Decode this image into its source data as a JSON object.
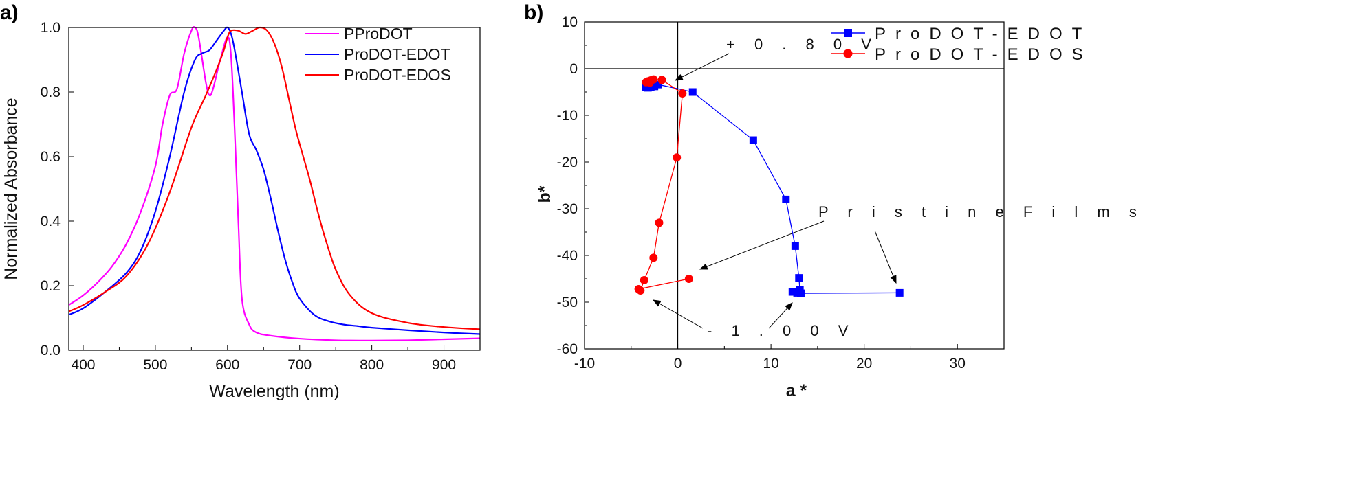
{
  "chart_data": [
    {
      "type": "line",
      "panel_label": "a)",
      "xlabel": "Wavelength (nm)",
      "ylabel": "Normalized Absorbance",
      "xlim": [
        380,
        950
      ],
      "ylim": [
        0.0,
        1.0
      ],
      "x_ticks": [
        400,
        500,
        600,
        700,
        800,
        900
      ],
      "y_ticks": [
        "0.0",
        "0.2",
        "0.4",
        "0.6",
        "0.8",
        "1.0"
      ],
      "legend_position": "top-right",
      "grid": false,
      "series": [
        {
          "name": "PProDOT",
          "color": "#ff00ff",
          "x": [
            380,
            400,
            420,
            440,
            460,
            480,
            500,
            510,
            520,
            530,
            540,
            550,
            555,
            560,
            570,
            575,
            580,
            590,
            600,
            605,
            610,
            615,
            620,
            630,
            640,
            660,
            700,
            750,
            800,
            850,
            900,
            950
          ],
          "y": [
            0.14,
            0.17,
            0.21,
            0.26,
            0.33,
            0.43,
            0.57,
            0.7,
            0.79,
            0.81,
            0.92,
            0.99,
            1.0,
            0.97,
            0.83,
            0.79,
            0.81,
            0.9,
            0.97,
            0.91,
            0.68,
            0.4,
            0.16,
            0.08,
            0.055,
            0.045,
            0.036,
            0.031,
            0.03,
            0.031,
            0.034,
            0.037
          ]
        },
        {
          "name": "ProDOT-EDOT",
          "color": "#0000ff",
          "x": [
            380,
            400,
            430,
            460,
            480,
            500,
            520,
            540,
            555,
            565,
            575,
            585,
            595,
            600,
            605,
            610,
            620,
            630,
            640,
            650,
            660,
            670,
            680,
            690,
            700,
            720,
            740,
            760,
            780,
            800,
            850,
            900,
            950
          ],
          "y": [
            0.11,
            0.13,
            0.18,
            0.24,
            0.31,
            0.43,
            0.6,
            0.8,
            0.9,
            0.92,
            0.93,
            0.96,
            0.99,
            1.0,
            0.98,
            0.93,
            0.8,
            0.67,
            0.62,
            0.56,
            0.47,
            0.37,
            0.28,
            0.21,
            0.16,
            0.11,
            0.09,
            0.08,
            0.075,
            0.07,
            0.062,
            0.055,
            0.05
          ]
        },
        {
          "name": "ProDOT-EDOS",
          "color": "#ff0000",
          "x": [
            380,
            400,
            430,
            460,
            490,
            520,
            550,
            570,
            585,
            595,
            600,
            605,
            615,
            625,
            635,
            645,
            655,
            665,
            675,
            685,
            695,
            705,
            715,
            725,
            735,
            750,
            770,
            800,
            850,
            900,
            950
          ],
          "y": [
            0.12,
            0.14,
            0.18,
            0.23,
            0.33,
            0.49,
            0.69,
            0.79,
            0.87,
            0.93,
            0.97,
            0.99,
            0.99,
            0.98,
            0.99,
            1.0,
            0.99,
            0.95,
            0.88,
            0.78,
            0.68,
            0.6,
            0.52,
            0.43,
            0.35,
            0.25,
            0.17,
            0.115,
            0.085,
            0.072,
            0.065
          ]
        }
      ]
    },
    {
      "type": "scatter",
      "panel_label": "b)",
      "xlabel": "a *",
      "ylabel": "b*",
      "xlim": [
        -10,
        35
      ],
      "ylim": [
        -60,
        10
      ],
      "x_ticks": [
        "-10",
        "0",
        "10",
        "20",
        "30"
      ],
      "y_ticks": [
        "10",
        "0",
        "-10",
        "-20",
        "-30",
        "-40",
        "-50",
        "-60"
      ],
      "legend_position": "top-right",
      "grid": false,
      "series": [
        {
          "name": "ProDOT-EDOT",
          "color": "#0000ff",
          "marker": "square",
          "points": [
            [
              23.8,
              -48.0
            ],
            [
              13.2,
              -48.1
            ],
            [
              12.8,
              -48.0
            ],
            [
              12.3,
              -47.8
            ],
            [
              13.1,
              -47.3
            ],
            [
              13.0,
              -44.8
            ],
            [
              12.6,
              -38.0
            ],
            [
              11.6,
              -28.0
            ],
            [
              8.1,
              -15.3
            ],
            [
              1.6,
              -5.0
            ],
            [
              -2.1,
              -3.4
            ],
            [
              -2.5,
              -3.8
            ],
            [
              -2.9,
              -4.0
            ],
            [
              -3.2,
              -4.1
            ],
            [
              -3.4,
              -4.0
            ]
          ]
        },
        {
          "name": "ProDOT-EDOS",
          "color": "#ff0000",
          "marker": "circle",
          "points": [
            [
              1.2,
              -45.0
            ],
            [
              -4.2,
              -47.2
            ],
            [
              -4.0,
              -47.5
            ],
            [
              -3.6,
              -45.3
            ],
            [
              -2.6,
              -40.5
            ],
            [
              -2.0,
              -33.0
            ],
            [
              -0.1,
              -19.0
            ],
            [
              0.5,
              -5.3
            ],
            [
              -1.7,
              -2.4
            ],
            [
              -2.6,
              -2.3
            ],
            [
              -2.9,
              -2.5
            ],
            [
              -3.0,
              -3.0
            ],
            [
              -3.2,
              -2.7
            ],
            [
              -3.4,
              -2.9
            ]
          ]
        }
      ],
      "annotations": [
        {
          "text": "+ 0 . 8 0   V"
        },
        {
          "text": "P r i s t i n e   F i l m s"
        },
        {
          "text": "- 1 . 0 0   V"
        }
      ]
    }
  ]
}
